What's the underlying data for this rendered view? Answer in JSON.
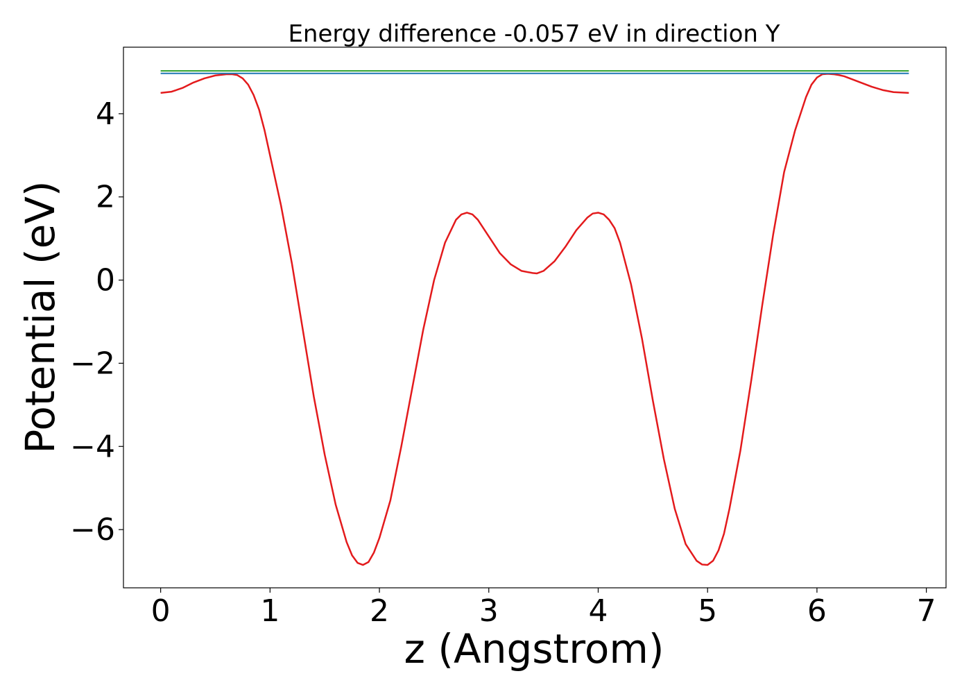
{
  "chart_data": {
    "type": "line",
    "title": "Energy difference -0.057 eV in direction Y",
    "xlabel": "z (Angstrom)",
    "ylabel": "Potential (eV)",
    "xlim": [
      -0.34,
      7.18
    ],
    "ylim": [
      -7.4,
      5.6
    ],
    "xticks": [
      0,
      1,
      2,
      3,
      4,
      5,
      6,
      7
    ],
    "xtick_labels": [
      "0",
      "1",
      "2",
      "3",
      "4",
      "5",
      "6",
      "7"
    ],
    "yticks": [
      4,
      2,
      0,
      -2,
      -4,
      -6
    ],
    "ytick_labels": [
      "4",
      "2",
      "0",
      "−2",
      "−4",
      "−6"
    ],
    "grid": false,
    "legend": "none",
    "series": [
      {
        "color": "#e31a1c",
        "x": [
          0,
          0.1,
          0.2,
          0.3,
          0.4,
          0.5,
          0.6,
          0.65,
          0.7,
          0.75,
          0.8,
          0.85,
          0.9,
          0.95,
          1.0,
          1.05,
          1.1,
          1.2,
          1.3,
          1.4,
          1.5,
          1.6,
          1.7,
          1.75,
          1.8,
          1.85,
          1.9,
          1.95,
          2.0,
          2.1,
          2.2,
          2.3,
          2.4,
          2.5,
          2.6,
          2.7,
          2.75,
          2.8,
          2.85,
          2.9,
          3.0,
          3.1,
          3.2,
          3.3,
          3.4,
          3.44,
          3.5,
          3.6,
          3.7,
          3.8,
          3.9,
          3.95,
          4.0,
          4.05,
          4.1,
          4.15,
          4.2,
          4.3,
          4.4,
          4.5,
          4.6,
          4.7,
          4.8,
          4.9,
          4.95,
          5.0,
          5.05,
          5.1,
          5.15,
          5.2,
          5.3,
          5.4,
          5.5,
          5.6,
          5.7,
          5.8,
          5.9,
          5.95,
          6.0,
          6.05,
          6.1,
          6.15,
          6.2,
          6.25,
          6.3,
          6.4,
          6.5,
          6.6,
          6.7,
          6.84
        ],
        "y": [
          4.5,
          4.53,
          4.62,
          4.75,
          4.85,
          4.92,
          4.95,
          4.95,
          4.93,
          4.85,
          4.7,
          4.45,
          4.1,
          3.6,
          3.0,
          2.4,
          1.8,
          0.4,
          -1.2,
          -2.8,
          -4.2,
          -5.4,
          -6.3,
          -6.62,
          -6.8,
          -6.85,
          -6.78,
          -6.55,
          -6.2,
          -5.3,
          -4.0,
          -2.6,
          -1.2,
          0.0,
          0.9,
          1.45,
          1.58,
          1.62,
          1.58,
          1.45,
          1.05,
          0.65,
          0.38,
          0.22,
          0.17,
          0.16,
          0.22,
          0.45,
          0.8,
          1.2,
          1.5,
          1.6,
          1.62,
          1.58,
          1.45,
          1.25,
          0.9,
          -0.1,
          -1.4,
          -2.9,
          -4.3,
          -5.5,
          -6.35,
          -6.75,
          -6.84,
          -6.85,
          -6.75,
          -6.5,
          -6.1,
          -5.5,
          -4.1,
          -2.4,
          -0.6,
          1.1,
          2.6,
          3.6,
          4.4,
          4.7,
          4.87,
          4.95,
          4.96,
          4.95,
          4.93,
          4.9,
          4.85,
          4.75,
          4.65,
          4.57,
          4.52,
          4.5
        ]
      },
      {
        "color": "#1f77b4",
        "x": [
          0,
          6.84
        ],
        "y": [
          4.97,
          4.97
        ]
      },
      {
        "color": "#2ca02c",
        "x": [
          0,
          6.84
        ],
        "y": [
          5.03,
          5.03
        ]
      }
    ]
  }
}
